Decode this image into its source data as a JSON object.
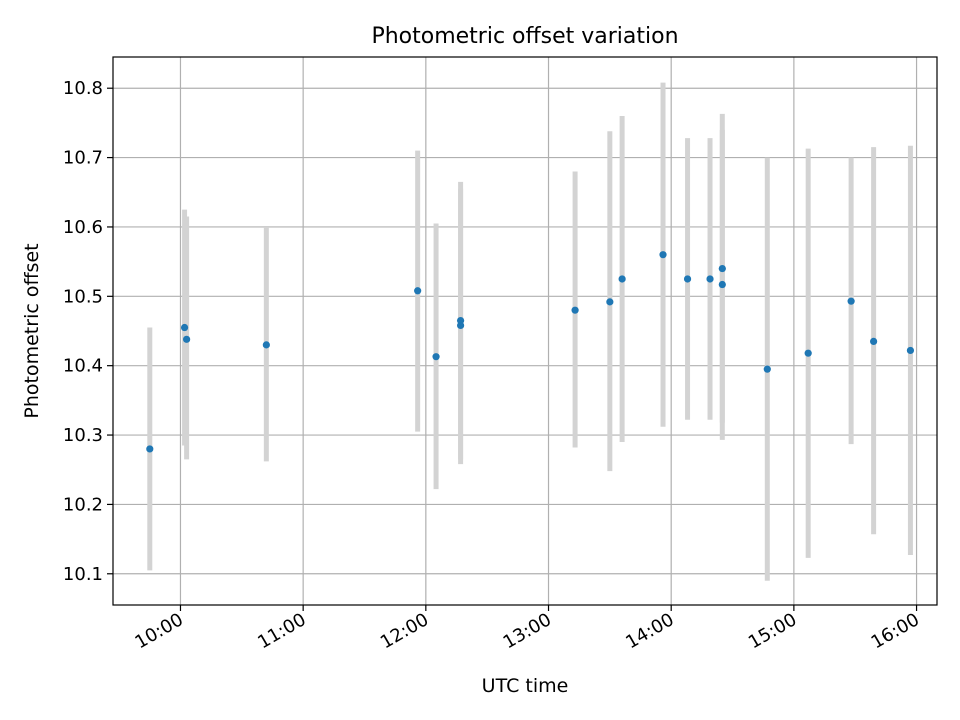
{
  "chart_data": {
    "type": "scatter",
    "title": "Photometric offset variation",
    "xlabel": "UTC time",
    "ylabel": "Photometric offset",
    "xlim": [
      "09:27",
      "16:10"
    ],
    "ylim": [
      10.055,
      10.845
    ],
    "x_ticks": [
      "10:00",
      "11:00",
      "12:00",
      "13:00",
      "14:00",
      "15:00",
      "16:00"
    ],
    "y_ticks": [
      "10.1",
      "10.2",
      "10.3",
      "10.4",
      "10.5",
      "10.6",
      "10.7",
      "10.8"
    ],
    "grid": true,
    "point_color": "#1f77b4",
    "errorbar_color": "#d3d3d3",
    "series": [
      {
        "points": [
          {
            "x": "09:45",
            "y": 10.28,
            "ylow": 10.105,
            "yhigh": 10.455
          },
          {
            "x": "10:02",
            "y": 10.455,
            "ylow": 10.285,
            "yhigh": 10.625
          },
          {
            "x": "10:03",
            "y": 10.438,
            "ylow": 10.265,
            "yhigh": 10.615
          },
          {
            "x": "10:42",
            "y": 10.43,
            "ylow": 10.262,
            "yhigh": 10.6
          },
          {
            "x": "11:56",
            "y": 10.508,
            "ylow": 10.305,
            "yhigh": 10.71
          },
          {
            "x": "12:05",
            "y": 10.413,
            "ylow": 10.222,
            "yhigh": 10.605
          },
          {
            "x": "12:17",
            "y": 10.458,
            "ylow": 10.258,
            "yhigh": 10.655
          },
          {
            "x": "12:17",
            "y": 10.465,
            "ylow": 10.265,
            "yhigh": 10.665
          },
          {
            "x": "13:13",
            "y": 10.48,
            "ylow": 10.282,
            "yhigh": 10.68
          },
          {
            "x": "13:30",
            "y": 10.492,
            "ylow": 10.248,
            "yhigh": 10.738
          },
          {
            "x": "13:36",
            "y": 10.525,
            "ylow": 10.29,
            "yhigh": 10.76
          },
          {
            "x": "13:56",
            "y": 10.56,
            "ylow": 10.312,
            "yhigh": 10.808
          },
          {
            "x": "14:08",
            "y": 10.525,
            "ylow": 10.322,
            "yhigh": 10.728
          },
          {
            "x": "14:19",
            "y": 10.525,
            "ylow": 10.322,
            "yhigh": 10.728
          },
          {
            "x": "14:25",
            "y": 10.54,
            "ylow": 10.318,
            "yhigh": 10.763
          },
          {
            "x": "14:25",
            "y": 10.517,
            "ylow": 10.293,
            "yhigh": 10.74
          },
          {
            "x": "14:47",
            "y": 10.395,
            "ylow": 10.09,
            "yhigh": 10.7
          },
          {
            "x": "15:07",
            "y": 10.418,
            "ylow": 10.123,
            "yhigh": 10.713
          },
          {
            "x": "15:28",
            "y": 10.493,
            "ylow": 10.287,
            "yhigh": 10.7
          },
          {
            "x": "15:39",
            "y": 10.435,
            "ylow": 10.157,
            "yhigh": 10.715
          },
          {
            "x": "15:57",
            "y": 10.422,
            "ylow": 10.127,
            "yhigh": 10.717
          }
        ]
      }
    ]
  }
}
